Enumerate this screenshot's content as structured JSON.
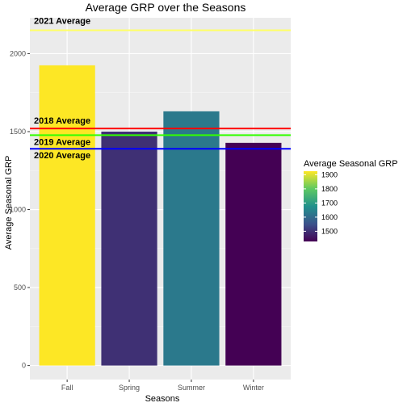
{
  "chart_data": {
    "type": "bar",
    "title": "Average GRP over the Seasons",
    "xlabel": "Seasons",
    "ylabel": "Average Seasonal GRP",
    "categories": [
      "Fall",
      "Spring",
      "Summer",
      "Winter"
    ],
    "values": [
      1925,
      1500,
      1630,
      1428
    ],
    "ylim": [
      -90,
      2230
    ],
    "yticks": [
      0,
      500,
      1000,
      1500,
      2000
    ],
    "grid": true,
    "reference_lines": [
      {
        "label": "2021 Average",
        "value": 2150,
        "color": "#ffff66"
      },
      {
        "label": "2018 Average",
        "value": 1520,
        "color": "#ff0000"
      },
      {
        "label": "2019 Average",
        "value": 1477,
        "color": "#33ff00"
      },
      {
        "label": "2020 Average",
        "value": 1390,
        "color": "#0000ff"
      }
    ],
    "legend": {
      "title": "Average Seasonal GRP",
      "placement": "right",
      "ticks": [
        1500,
        1600,
        1700,
        1800,
        1900
      ],
      "range": [
        1428,
        1925
      ],
      "colors": [
        "#440154",
        "#3b528b",
        "#21918c",
        "#5ec962",
        "#fde725"
      ]
    }
  }
}
